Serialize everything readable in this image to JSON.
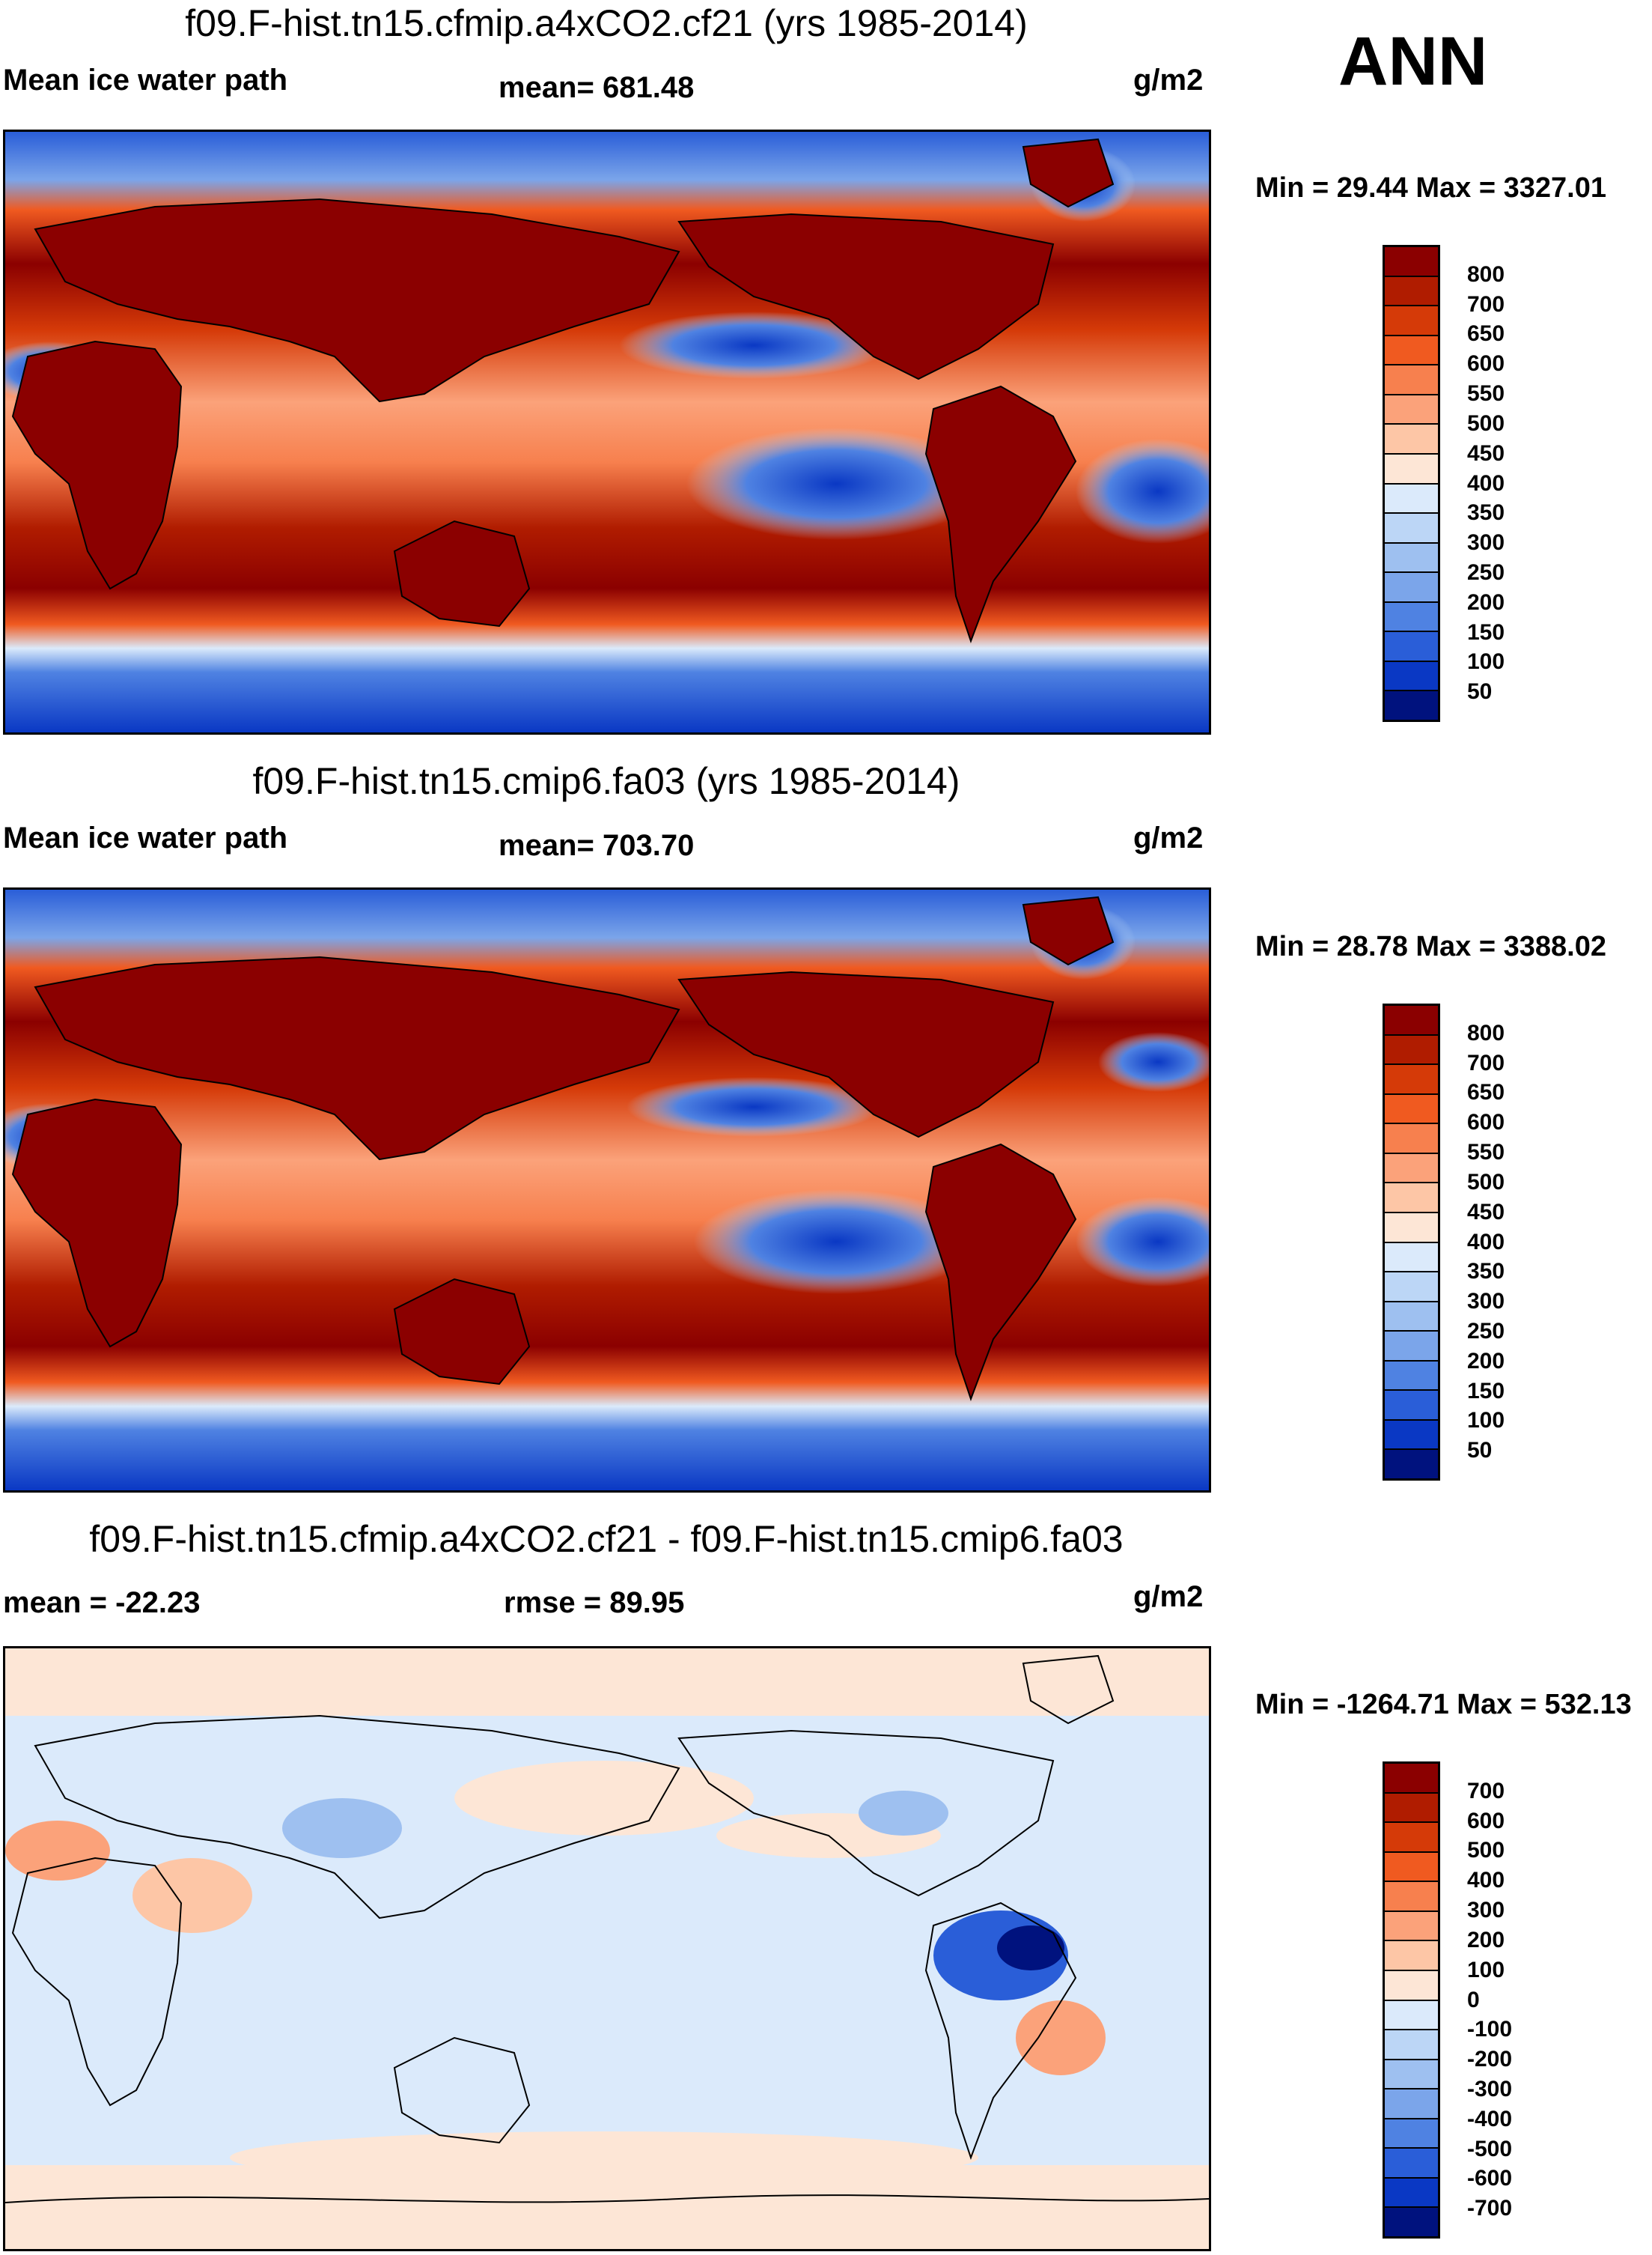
{
  "season": "ANN",
  "units": "g/m2",
  "panels": [
    {
      "title": "f09.F-hist.tn15.cfmip.a4xCO2.cf21 (yrs 1985-2014)",
      "left_label": "Mean ice water path",
      "center_label": "mean= 681.48",
      "right_label": "g/m2",
      "minmax": "Min =  29.44 Max = 3327.01",
      "colorbar": {
        "labels": [
          "800",
          "700",
          "650",
          "600",
          "550",
          "500",
          "450",
          "400",
          "350",
          "300",
          "250",
          "200",
          "150",
          "100",
          "50"
        ],
        "colors": [
          "#8b0000",
          "#b01c00",
          "#d53a08",
          "#f05a20",
          "#f7804e",
          "#fba27a",
          "#fdc6a6",
          "#fde6d6",
          "#dbeafb",
          "#bcd6f6",
          "#9ec0f0",
          "#7ba5ea",
          "#4f82e2",
          "#2a5ed8",
          "#0a38c4",
          "#00127e"
        ]
      }
    },
    {
      "title": "f09.F-hist.tn15.cmip6.fa03 (yrs 1985-2014)",
      "left_label": "Mean ice water path",
      "center_label": "mean= 703.70",
      "right_label": "g/m2",
      "minmax": "Min =  28.78 Max = 3388.02",
      "colorbar": {
        "labels": [
          "800",
          "700",
          "650",
          "600",
          "550",
          "500",
          "450",
          "400",
          "350",
          "300",
          "250",
          "200",
          "150",
          "100",
          "50"
        ],
        "colors": [
          "#8b0000",
          "#b01c00",
          "#d53a08",
          "#f05a20",
          "#f7804e",
          "#fba27a",
          "#fdc6a6",
          "#fde6d6",
          "#dbeafb",
          "#bcd6f6",
          "#9ec0f0",
          "#7ba5ea",
          "#4f82e2",
          "#2a5ed8",
          "#0a38c4",
          "#00127e"
        ]
      }
    },
    {
      "title": "f09.F-hist.tn15.cfmip.a4xCO2.cf21 - f09.F-hist.tn15.cmip6.fa03",
      "left_label": "mean = -22.23",
      "center_label": "rmse =  89.95",
      "right_label": "g/m2",
      "minmax": "Min = -1264.71 Max = 532.13",
      "colorbar": {
        "labels": [
          "700",
          "600",
          "500",
          "400",
          "300",
          "200",
          "100",
          "0",
          "-100",
          "-200",
          "-300",
          "-400",
          "-500",
          "-600",
          "-700"
        ],
        "colors": [
          "#8b0000",
          "#b01c00",
          "#d53a08",
          "#f05a20",
          "#f7804e",
          "#fba27a",
          "#fdc6a6",
          "#fde6d6",
          "#dbeafb",
          "#bcd6f6",
          "#9ec0f0",
          "#7ba5ea",
          "#4f82e2",
          "#2a5ed8",
          "#0a38c4",
          "#00127e"
        ]
      }
    }
  ]
}
